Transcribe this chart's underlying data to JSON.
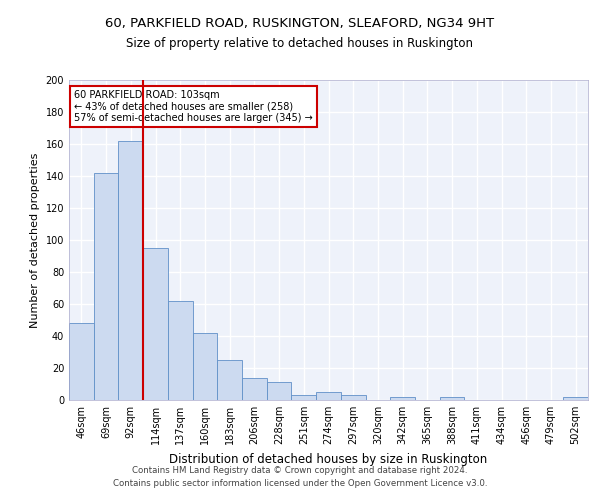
{
  "title1": "60, PARKFIELD ROAD, RUSKINGTON, SLEAFORD, NG34 9HT",
  "title2": "Size of property relative to detached houses in Ruskington",
  "xlabel": "Distribution of detached houses by size in Ruskington",
  "ylabel": "Number of detached properties",
  "categories": [
    "46sqm",
    "69sqm",
    "92sqm",
    "114sqm",
    "137sqm",
    "160sqm",
    "183sqm",
    "206sqm",
    "228sqm",
    "251sqm",
    "274sqm",
    "297sqm",
    "320sqm",
    "342sqm",
    "365sqm",
    "388sqm",
    "411sqm",
    "434sqm",
    "456sqm",
    "479sqm",
    "502sqm"
  ],
  "values": [
    48,
    142,
    162,
    95,
    62,
    42,
    25,
    14,
    11,
    3,
    5,
    3,
    0,
    2,
    0,
    2,
    0,
    0,
    0,
    0,
    2
  ],
  "bar_color": "#ccdaf0",
  "bar_edge_color": "#6090c8",
  "property_line_x": 2.5,
  "annotation_line1": "60 PARKFIELD ROAD: 103sqm",
  "annotation_line2": "← 43% of detached houses are smaller (258)",
  "annotation_line3": "57% of semi-detached houses are larger (345) →",
  "annotation_box_color": "#ffffff",
  "annotation_box_edge": "#cc0000",
  "red_line_color": "#cc0000",
  "footer1": "Contains HM Land Registry data © Crown copyright and database right 2024.",
  "footer2": "Contains public sector information licensed under the Open Government Licence v3.0.",
  "ylim": [
    0,
    200
  ],
  "yticks": [
    0,
    20,
    40,
    60,
    80,
    100,
    120,
    140,
    160,
    180,
    200
  ],
  "background_color": "#eef2fa",
  "grid_color": "#ffffff",
  "title1_fontsize": 9.5,
  "title2_fontsize": 8.5,
  "axis_label_fontsize": 8,
  "tick_fontsize": 7,
  "footer_fontsize": 6.2
}
